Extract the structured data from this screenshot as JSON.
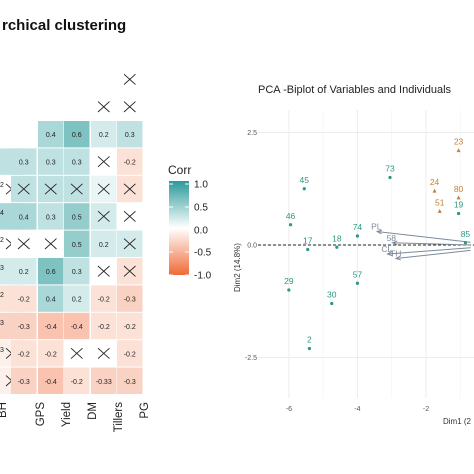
{
  "chart_data": [
    {
      "type": "heatmap",
      "title": "rchical clustering",
      "x_tick_labels": [
        "BH",
        "GPS",
        "Yield",
        "DM",
        "Tillers",
        "PG"
      ],
      "row_label_fragments": [
        "2",
        "4",
        "2",
        "3",
        "2",
        "3",
        "3"
      ],
      "color_scale": {
        "low": "#ef6a37",
        "mid": "#ffffff",
        "high": "#2a9a9a",
        "min": -1.0,
        "max": 1.0
      },
      "legend": {
        "title": "Corr",
        "ticks": [
          "1.0",
          "0.5",
          "0.0",
          "-0.5",
          "-1.0"
        ],
        "placement": "right"
      },
      "columns": [
        {
          "label": "GPS",
          "cells": [
            {
              "v": 0.3,
              "label": "0.3",
              "crossed": false
            },
            {
              "v": 0.3,
              "label": "",
              "crossed": true
            },
            {
              "v": 0.4,
              "label": "0.4",
              "crossed": false
            },
            {
              "v": 0.0,
              "label": "",
              "crossed": true
            },
            {
              "v": 0.2,
              "label": "0.2",
              "crossed": false
            },
            {
              "v": -0.2,
              "label": "-0.2",
              "crossed": false
            },
            {
              "v": -0.3,
              "label": "-0.3",
              "crossed": false
            },
            {
              "v": -0.2,
              "label": "-0.2",
              "crossed": false
            },
            {
              "v": -0.3,
              "label": "-0.3",
              "crossed": false
            }
          ]
        },
        {
          "label": "Yield",
          "cells": [
            {
              "v": 0.4,
              "label": "0.4",
              "crossed": false
            },
            {
              "v": 0.3,
              "label": "0.3",
              "crossed": false
            },
            {
              "v": 0.3,
              "label": "",
              "crossed": true
            },
            {
              "v": 0.3,
              "label": "0.3",
              "crossed": false
            },
            {
              "v": 0.0,
              "label": "",
              "crossed": true
            },
            {
              "v": 0.6,
              "label": "0.6",
              "crossed": false
            },
            {
              "v": 0.4,
              "label": "0.4",
              "crossed": false
            },
            {
              "v": -0.4,
              "label": "-0.4",
              "crossed": false
            },
            {
              "v": -0.2,
              "label": "-0.2",
              "crossed": false
            },
            {
              "v": -0.4,
              "label": "-0.4",
              "crossed": false
            }
          ]
        },
        {
          "label": "DM",
          "cells": [
            {
              "v": 0.6,
              "label": "0.6",
              "crossed": false
            },
            {
              "v": 0.3,
              "label": "0.3",
              "crossed": false
            },
            {
              "v": 0.3,
              "label": "",
              "crossed": true
            },
            {
              "v": 0.5,
              "label": "0.5",
              "crossed": false
            },
            {
              "v": 0.5,
              "label": "0.5",
              "crossed": false
            },
            {
              "v": 0.3,
              "label": "0.3",
              "crossed": false
            },
            {
              "v": 0.2,
              "label": "0.2",
              "crossed": false
            },
            {
              "v": -0.4,
              "label": "-0.4",
              "crossed": false
            },
            {
              "v": 0.0,
              "label": "",
              "crossed": true
            },
            {
              "v": -0.2,
              "label": "-0.2",
              "crossed": false
            }
          ]
        },
        {
          "label": "Tillers",
          "cells": [
            {
              "v": 0.0,
              "label": "",
              "crossed": true
            },
            {
              "v": 0.2,
              "label": "0.2",
              "crossed": false
            },
            {
              "v": 0.0,
              "label": "",
              "crossed": true
            },
            {
              "v": 0.1,
              "label": "",
              "crossed": true
            },
            {
              "v": 0.2,
              "label": "",
              "crossed": true
            },
            {
              "v": 0.2,
              "label": "0.2",
              "crossed": false
            },
            {
              "v": 0.0,
              "label": "",
              "crossed": true
            },
            {
              "v": -0.2,
              "label": "-0.2",
              "crossed": false
            },
            {
              "v": -0.2,
              "label": "-0.2",
              "crossed": false
            },
            {
              "v": 0.0,
              "label": "",
              "crossed": true
            },
            {
              "v": -0.3,
              "label": "-0.33",
              "crossed": false
            }
          ]
        },
        {
          "label": "PG",
          "cells": [
            {
              "v": 0.0,
              "label": "",
              "crossed": true
            },
            {
              "v": 0.0,
              "label": "",
              "crossed": true
            },
            {
              "v": 0.3,
              "label": "0.3",
              "crossed": false
            },
            {
              "v": -0.2,
              "label": "-0.2",
              "crossed": false
            },
            {
              "v": -0.2,
              "label": "",
              "crossed": true
            },
            {
              "v": 0.0,
              "label": "",
              "crossed": true
            },
            {
              "v": 0.2,
              "label": "",
              "crossed": true
            },
            {
              "v": -0.2,
              "label": "",
              "crossed": true
            },
            {
              "v": -0.3,
              "label": "-0.3",
              "crossed": false
            },
            {
              "v": -0.2,
              "label": "-0.2",
              "crossed": false
            },
            {
              "v": -0.2,
              "label": "-0.2",
              "crossed": false
            },
            {
              "v": -0.3,
              "label": "-0.3",
              "crossed": false
            }
          ]
        }
      ],
      "bh_column": [
        {
          "v": 0.3,
          "label": "",
          "crossed": false
        },
        {
          "v": 0.0,
          "label": "",
          "crossed": true
        },
        {
          "v": 0.4,
          "label": "",
          "crossed": false
        },
        {
          "v": 0.0,
          "label": "",
          "crossed": true
        },
        {
          "v": 0.2,
          "label": "",
          "crossed": false
        },
        {
          "v": -0.2,
          "label": "",
          "crossed": false
        },
        {
          "v": -0.3,
          "label": "",
          "crossed": false
        },
        {
          "v": -0.1,
          "label": "",
          "crossed": true
        },
        {
          "v": -0.1,
          "label": "",
          "crossed": true
        }
      ]
    },
    {
      "type": "scatter",
      "title": "PCA -Biplot of Variables and Individuals",
      "xlabel": "Dim1 (2",
      "ylabel": "Dim2 (14.8%)",
      "xlim": [
        -6.9,
        -0.6
      ],
      "ylim": [
        -3.4,
        3.0
      ],
      "x_ticks": [
        -6,
        -4,
        -2
      ],
      "y_ticks": [
        "2.5",
        "0.0",
        "-2.5"
      ],
      "y_tick_values": [
        2.5,
        0.0,
        -2.5
      ],
      "colors": {
        "teal": "#2a9686",
        "orange": "#c0813a",
        "arrow": "#7d8a99"
      },
      "points_teal": [
        {
          "label": "45",
          "x": -5.55,
          "y": 1.25
        },
        {
          "label": "73",
          "x": -3.05,
          "y": 1.5
        },
        {
          "label": "46",
          "x": -5.95,
          "y": 0.45
        },
        {
          "label": "74",
          "x": -4.0,
          "y": 0.2
        },
        {
          "label": "17",
          "x": -5.45,
          "y": -0.1
        },
        {
          "label": "18",
          "x": -4.6,
          "y": -0.05
        },
        {
          "label": "57",
          "x": -4.0,
          "y": -0.85
        },
        {
          "label": "29",
          "x": -6.0,
          "y": -1.0
        },
        {
          "label": "30",
          "x": -4.75,
          "y": -1.3
        },
        {
          "label": "2",
          "x": -5.4,
          "y": -2.3
        },
        {
          "label": "19",
          "x": -1.05,
          "y": 0.7
        },
        {
          "label": "85",
          "x": -0.85,
          "y": 0.05
        }
      ],
      "points_orange": [
        {
          "label": "23",
          "x": -1.05,
          "y": 2.1
        },
        {
          "label": "24",
          "x": -1.75,
          "y": 1.2
        },
        {
          "label": "51",
          "x": -1.6,
          "y": 0.75
        },
        {
          "label": "80",
          "x": -1.05,
          "y": 1.05
        }
      ],
      "variables": [
        {
          "label": "PL",
          "x": -3.6,
          "y": 0.3
        },
        {
          "label": "58",
          "x": -3.15,
          "y": 0.05
        },
        {
          "label": "CL",
          "x": -3.3,
          "y": -0.2
        },
        {
          "label": "TH",
          "x": -3.05,
          "y": -0.3
        }
      ]
    }
  ]
}
